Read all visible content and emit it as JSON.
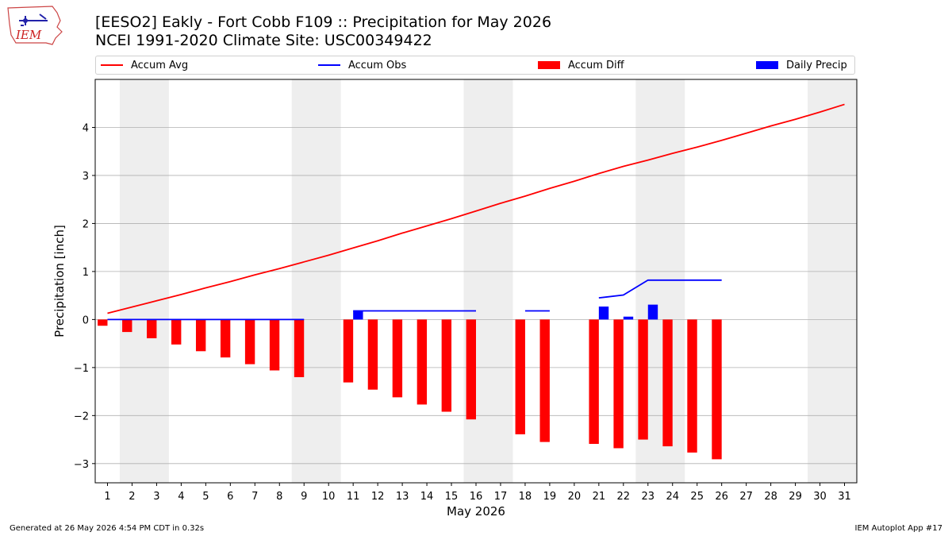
{
  "header": {
    "title_line1": "[EESO2] Eakly - Fort Cobb F109 :: Precipitation for May 2026",
    "title_line2": "NCEI 1991-2020 Climate Site: USC00349422",
    "logo_text": "IEM"
  },
  "footer": {
    "generated": "Generated at 26 May 2026 4:54 PM CDT in 0.32s",
    "app": "IEM Autoplot App #17"
  },
  "colors": {
    "avg": "#ff0000",
    "obs": "#0000ff",
    "diff": "#ff0000",
    "daily": "#0000ff",
    "weekend_shade": "#eeeeee",
    "grid": "#b0b0b0"
  },
  "chart_data": {
    "type": "bar",
    "xlabel": "May 2026",
    "ylabel": "Precipitation [inch]",
    "xlim": [
      0.5,
      31.5
    ],
    "ylim": [
      -3.4,
      5.0
    ],
    "yticks": [
      -3,
      -2,
      -1,
      0,
      1,
      2,
      3,
      4
    ],
    "ytick_labels": [
      "−3",
      "−2",
      "−1",
      "0",
      "1",
      "2",
      "3",
      "4"
    ],
    "days": [
      1,
      2,
      3,
      4,
      5,
      6,
      7,
      8,
      9,
      10,
      11,
      12,
      13,
      14,
      15,
      16,
      17,
      18,
      19,
      20,
      21,
      22,
      23,
      24,
      25,
      26,
      27,
      28,
      29,
      30,
      31
    ],
    "grid": "horizontal",
    "legend_position": "top",
    "legend": {
      "avg": "Accum Avg",
      "obs": "Accum Obs",
      "diff": "Accum Diff",
      "daily": "Daily Precip"
    },
    "shaded_day_ranges": [
      [
        2,
        3
      ],
      [
        9,
        10
      ],
      [
        16,
        17
      ],
      [
        23,
        24
      ],
      [
        30,
        31
      ]
    ],
    "accum_avg": {
      "x": [
        1,
        2,
        3,
        4,
        5,
        6,
        7,
        8,
        9,
        10,
        11,
        12,
        13,
        14,
        15,
        16,
        17,
        18,
        19,
        20,
        21,
        22,
        23,
        24,
        25,
        26,
        27,
        28,
        29,
        30,
        31
      ],
      "y": [
        0.13,
        0.26,
        0.39,
        0.52,
        0.66,
        0.79,
        0.93,
        1.06,
        1.2,
        1.34,
        1.49,
        1.64,
        1.8,
        1.95,
        2.1,
        2.26,
        2.42,
        2.57,
        2.73,
        2.88,
        3.04,
        3.19,
        3.32,
        3.46,
        3.59,
        3.73,
        3.88,
        4.03,
        4.17,
        4.32,
        4.48
      ]
    },
    "accum_obs_segments": [
      {
        "x": [
          1,
          2,
          3,
          4,
          5,
          6,
          7,
          8,
          9
        ],
        "y": [
          0,
          0,
          0,
          0,
          0,
          0,
          0,
          0,
          0
        ]
      },
      {
        "x": [
          11,
          12,
          13,
          14,
          15,
          16
        ],
        "y": [
          0.18,
          0.18,
          0.18,
          0.18,
          0.18,
          0.18
        ]
      },
      {
        "x": [
          18,
          19
        ],
        "y": [
          0.18,
          0.18
        ]
      },
      {
        "x": [
          21,
          22,
          23,
          24,
          25,
          26
        ],
        "y": [
          0.45,
          0.51,
          0.82,
          0.82,
          0.82,
          0.82
        ]
      }
    ],
    "accum_diff": [
      {
        "day": 1,
        "value": -0.13
      },
      {
        "day": 2,
        "value": -0.26
      },
      {
        "day": 3,
        "value": -0.39
      },
      {
        "day": 4,
        "value": -0.52
      },
      {
        "day": 5,
        "value": -0.66
      },
      {
        "day": 6,
        "value": -0.79
      },
      {
        "day": 7,
        "value": -0.93
      },
      {
        "day": 8,
        "value": -1.06
      },
      {
        "day": 9,
        "value": -1.2
      },
      {
        "day": 11,
        "value": -1.31
      },
      {
        "day": 12,
        "value": -1.46
      },
      {
        "day": 13,
        "value": -1.62
      },
      {
        "day": 14,
        "value": -1.77
      },
      {
        "day": 15,
        "value": -1.92
      },
      {
        "day": 16,
        "value": -2.08
      },
      {
        "day": 18,
        "value": -2.39
      },
      {
        "day": 19,
        "value": -2.55
      },
      {
        "day": 21,
        "value": -2.59
      },
      {
        "day": 22,
        "value": -2.68
      },
      {
        "day": 23,
        "value": -2.5
      },
      {
        "day": 24,
        "value": -2.64
      },
      {
        "day": 25,
        "value": -2.77
      },
      {
        "day": 26,
        "value": -2.91
      }
    ],
    "daily_precip": [
      {
        "day": 11,
        "value": 0.18
      },
      {
        "day": 21,
        "value": 0.27
      },
      {
        "day": 22,
        "value": 0.06
      },
      {
        "day": 23,
        "value": 0.31
      }
    ]
  }
}
